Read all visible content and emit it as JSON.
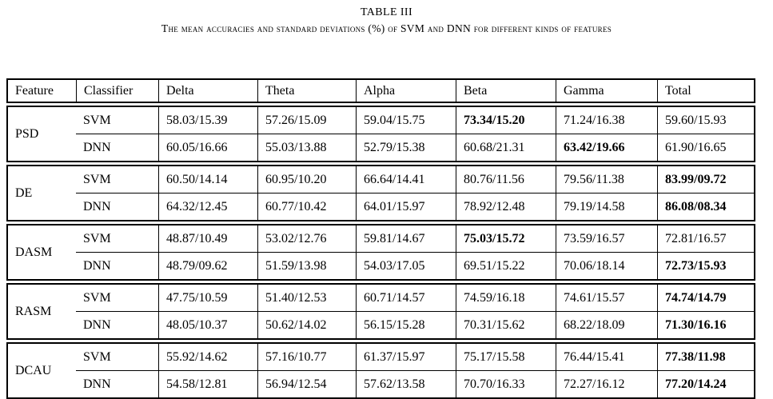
{
  "caption": {
    "title": "TABLE III",
    "subtitle": "The mean accuracies and standard deviations (%) of SVM and DNN for different kinds of features"
  },
  "table": {
    "header": [
      "Feature",
      "Classifier",
      "Delta",
      "Theta",
      "Alpha",
      "Beta",
      "Gamma",
      "Total"
    ],
    "groups": [
      {
        "feature": "PSD",
        "rows": [
          {
            "classifier": "SVM",
            "cells": [
              {
                "v": "58.03/15.39",
                "bold": false
              },
              {
                "v": "57.26/15.09",
                "bold": false
              },
              {
                "v": "59.04/15.75",
                "bold": false
              },
              {
                "v": "73.34/15.20",
                "bold": true
              },
              {
                "v": "71.24/16.38",
                "bold": false
              },
              {
                "v": "59.60/15.93",
                "bold": false
              }
            ]
          },
          {
            "classifier": "DNN",
            "cells": [
              {
                "v": "60.05/16.66",
                "bold": false
              },
              {
                "v": "55.03/13.88",
                "bold": false
              },
              {
                "v": "52.79/15.38",
                "bold": false
              },
              {
                "v": "60.68/21.31",
                "bold": false
              },
              {
                "v": "63.42/19.66",
                "bold": true
              },
              {
                "v": "61.90/16.65",
                "bold": false
              }
            ]
          }
        ]
      },
      {
        "feature": "DE",
        "rows": [
          {
            "classifier": "SVM",
            "cells": [
              {
                "v": "60.50/14.14",
                "bold": false
              },
              {
                "v": "60.95/10.20",
                "bold": false
              },
              {
                "v": "66.64/14.41",
                "bold": false
              },
              {
                "v": "80.76/11.56",
                "bold": false
              },
              {
                "v": "79.56/11.38",
                "bold": false
              },
              {
                "v": "83.99/09.72",
                "bold": true
              }
            ]
          },
          {
            "classifier": "DNN",
            "cells": [
              {
                "v": "64.32/12.45",
                "bold": false
              },
              {
                "v": "60.77/10.42",
                "bold": false
              },
              {
                "v": "64.01/15.97",
                "bold": false
              },
              {
                "v": "78.92/12.48",
                "bold": false
              },
              {
                "v": "79.19/14.58",
                "bold": false
              },
              {
                "v": "86.08/08.34",
                "bold": true
              }
            ]
          }
        ]
      },
      {
        "feature": "DASM",
        "rows": [
          {
            "classifier": "SVM",
            "cells": [
              {
                "v": "48.87/10.49",
                "bold": false
              },
              {
                "v": "53.02/12.76",
                "bold": false
              },
              {
                "v": "59.81/14.67",
                "bold": false
              },
              {
                "v": "75.03/15.72",
                "bold": true
              },
              {
                "v": "73.59/16.57",
                "bold": false
              },
              {
                "v": "72.81/16.57",
                "bold": false
              }
            ]
          },
          {
            "classifier": "DNN",
            "cells": [
              {
                "v": "48.79/09.62",
                "bold": false
              },
              {
                "v": "51.59/13.98",
                "bold": false
              },
              {
                "v": "54.03/17.05",
                "bold": false
              },
              {
                "v": "69.51/15.22",
                "bold": false
              },
              {
                "v": "70.06/18.14",
                "bold": false
              },
              {
                "v": "72.73/15.93",
                "bold": true
              }
            ]
          }
        ]
      },
      {
        "feature": "RASM",
        "rows": [
          {
            "classifier": "SVM",
            "cells": [
              {
                "v": "47.75/10.59",
                "bold": false
              },
              {
                "v": "51.40/12.53",
                "bold": false
              },
              {
                "v": "60.71/14.57",
                "bold": false
              },
              {
                "v": "74.59/16.18",
                "bold": false
              },
              {
                "v": "74.61/15.57",
                "bold": false
              },
              {
                "v": "74.74/14.79",
                "bold": true
              }
            ]
          },
          {
            "classifier": "DNN",
            "cells": [
              {
                "v": "48.05/10.37",
                "bold": false
              },
              {
                "v": "50.62/14.02",
                "bold": false
              },
              {
                "v": "56.15/15.28",
                "bold": false
              },
              {
                "v": "70.31/15.62",
                "bold": false
              },
              {
                "v": "68.22/18.09",
                "bold": false
              },
              {
                "v": "71.30/16.16",
                "bold": true
              }
            ]
          }
        ]
      },
      {
        "feature": "DCAU",
        "rows": [
          {
            "classifier": "SVM",
            "cells": [
              {
                "v": "55.92/14.62",
                "bold": false
              },
              {
                "v": "57.16/10.77",
                "bold": false
              },
              {
                "v": "61.37/15.97",
                "bold": false
              },
              {
                "v": "75.17/15.58",
                "bold": false
              },
              {
                "v": "76.44/15.41",
                "bold": false
              },
              {
                "v": "77.38/11.98",
                "bold": true
              }
            ]
          },
          {
            "classifier": "DNN",
            "cells": [
              {
                "v": "54.58/12.81",
                "bold": false
              },
              {
                "v": "56.94/12.54",
                "bold": false
              },
              {
                "v": "57.62/13.58",
                "bold": false
              },
              {
                "v": "70.70/16.33",
                "bold": false
              },
              {
                "v": "72.27/16.12",
                "bold": false
              },
              {
                "v": "77.20/14.24",
                "bold": true
              }
            ]
          }
        ]
      }
    ]
  }
}
